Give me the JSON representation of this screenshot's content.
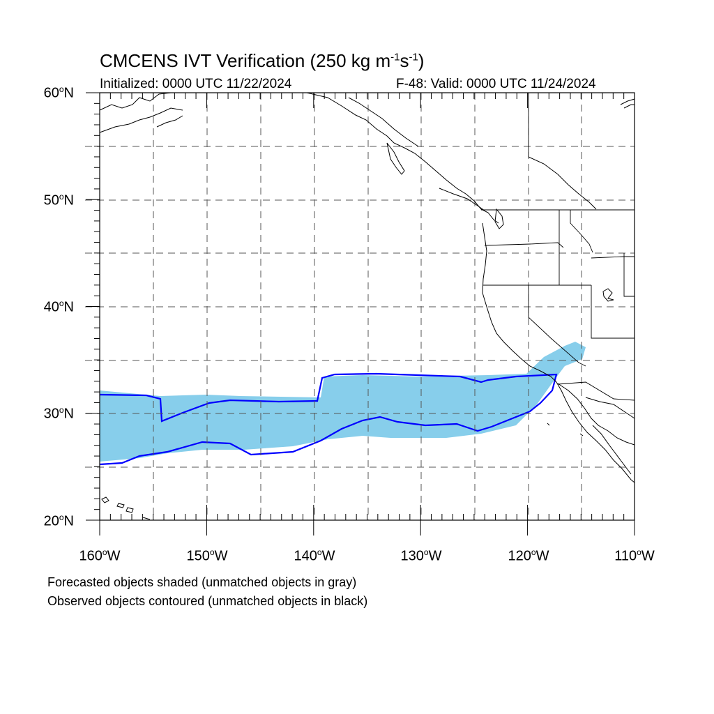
{
  "title": {
    "prefix": "CMCENS IVT Verification (250 kg m",
    "exp1": "-1",
    "mid": "s",
    "exp2": "-1",
    "suffix": ")"
  },
  "subtitle_left": "Initialized: 0000 UTC 11/22/2024",
  "subtitle_right": "F-48: Valid: 0000 UTC 11/24/2024",
  "lat_labels": [
    "60",
    "50",
    "40",
    "30",
    "20"
  ],
  "lat_suffix": "N",
  "lon_labels": [
    "160",
    "150",
    "140",
    "130",
    "120",
    "110"
  ],
  "lon_suffix": "W",
  "degree": "o",
  "captions": [
    "Forecasted objects shaded (unmatched objects in gray)",
    "Observed objects contoured (unmatched objects in black)"
  ],
  "map": {
    "lon_range": [
      -160,
      -110
    ],
    "lat_range": [
      20,
      60
    ],
    "grid_lons": [
      -155,
      -150,
      -145,
      -140,
      -135,
      -130,
      -125,
      -120,
      -115
    ],
    "grid_lats": [
      25,
      30,
      35,
      40,
      45,
      50,
      55
    ],
    "colors": {
      "forecast_fill": "#87ceeb",
      "observed_contour": "#0000ff",
      "coastline": "#000000",
      "grid": "#555555"
    }
  }
}
